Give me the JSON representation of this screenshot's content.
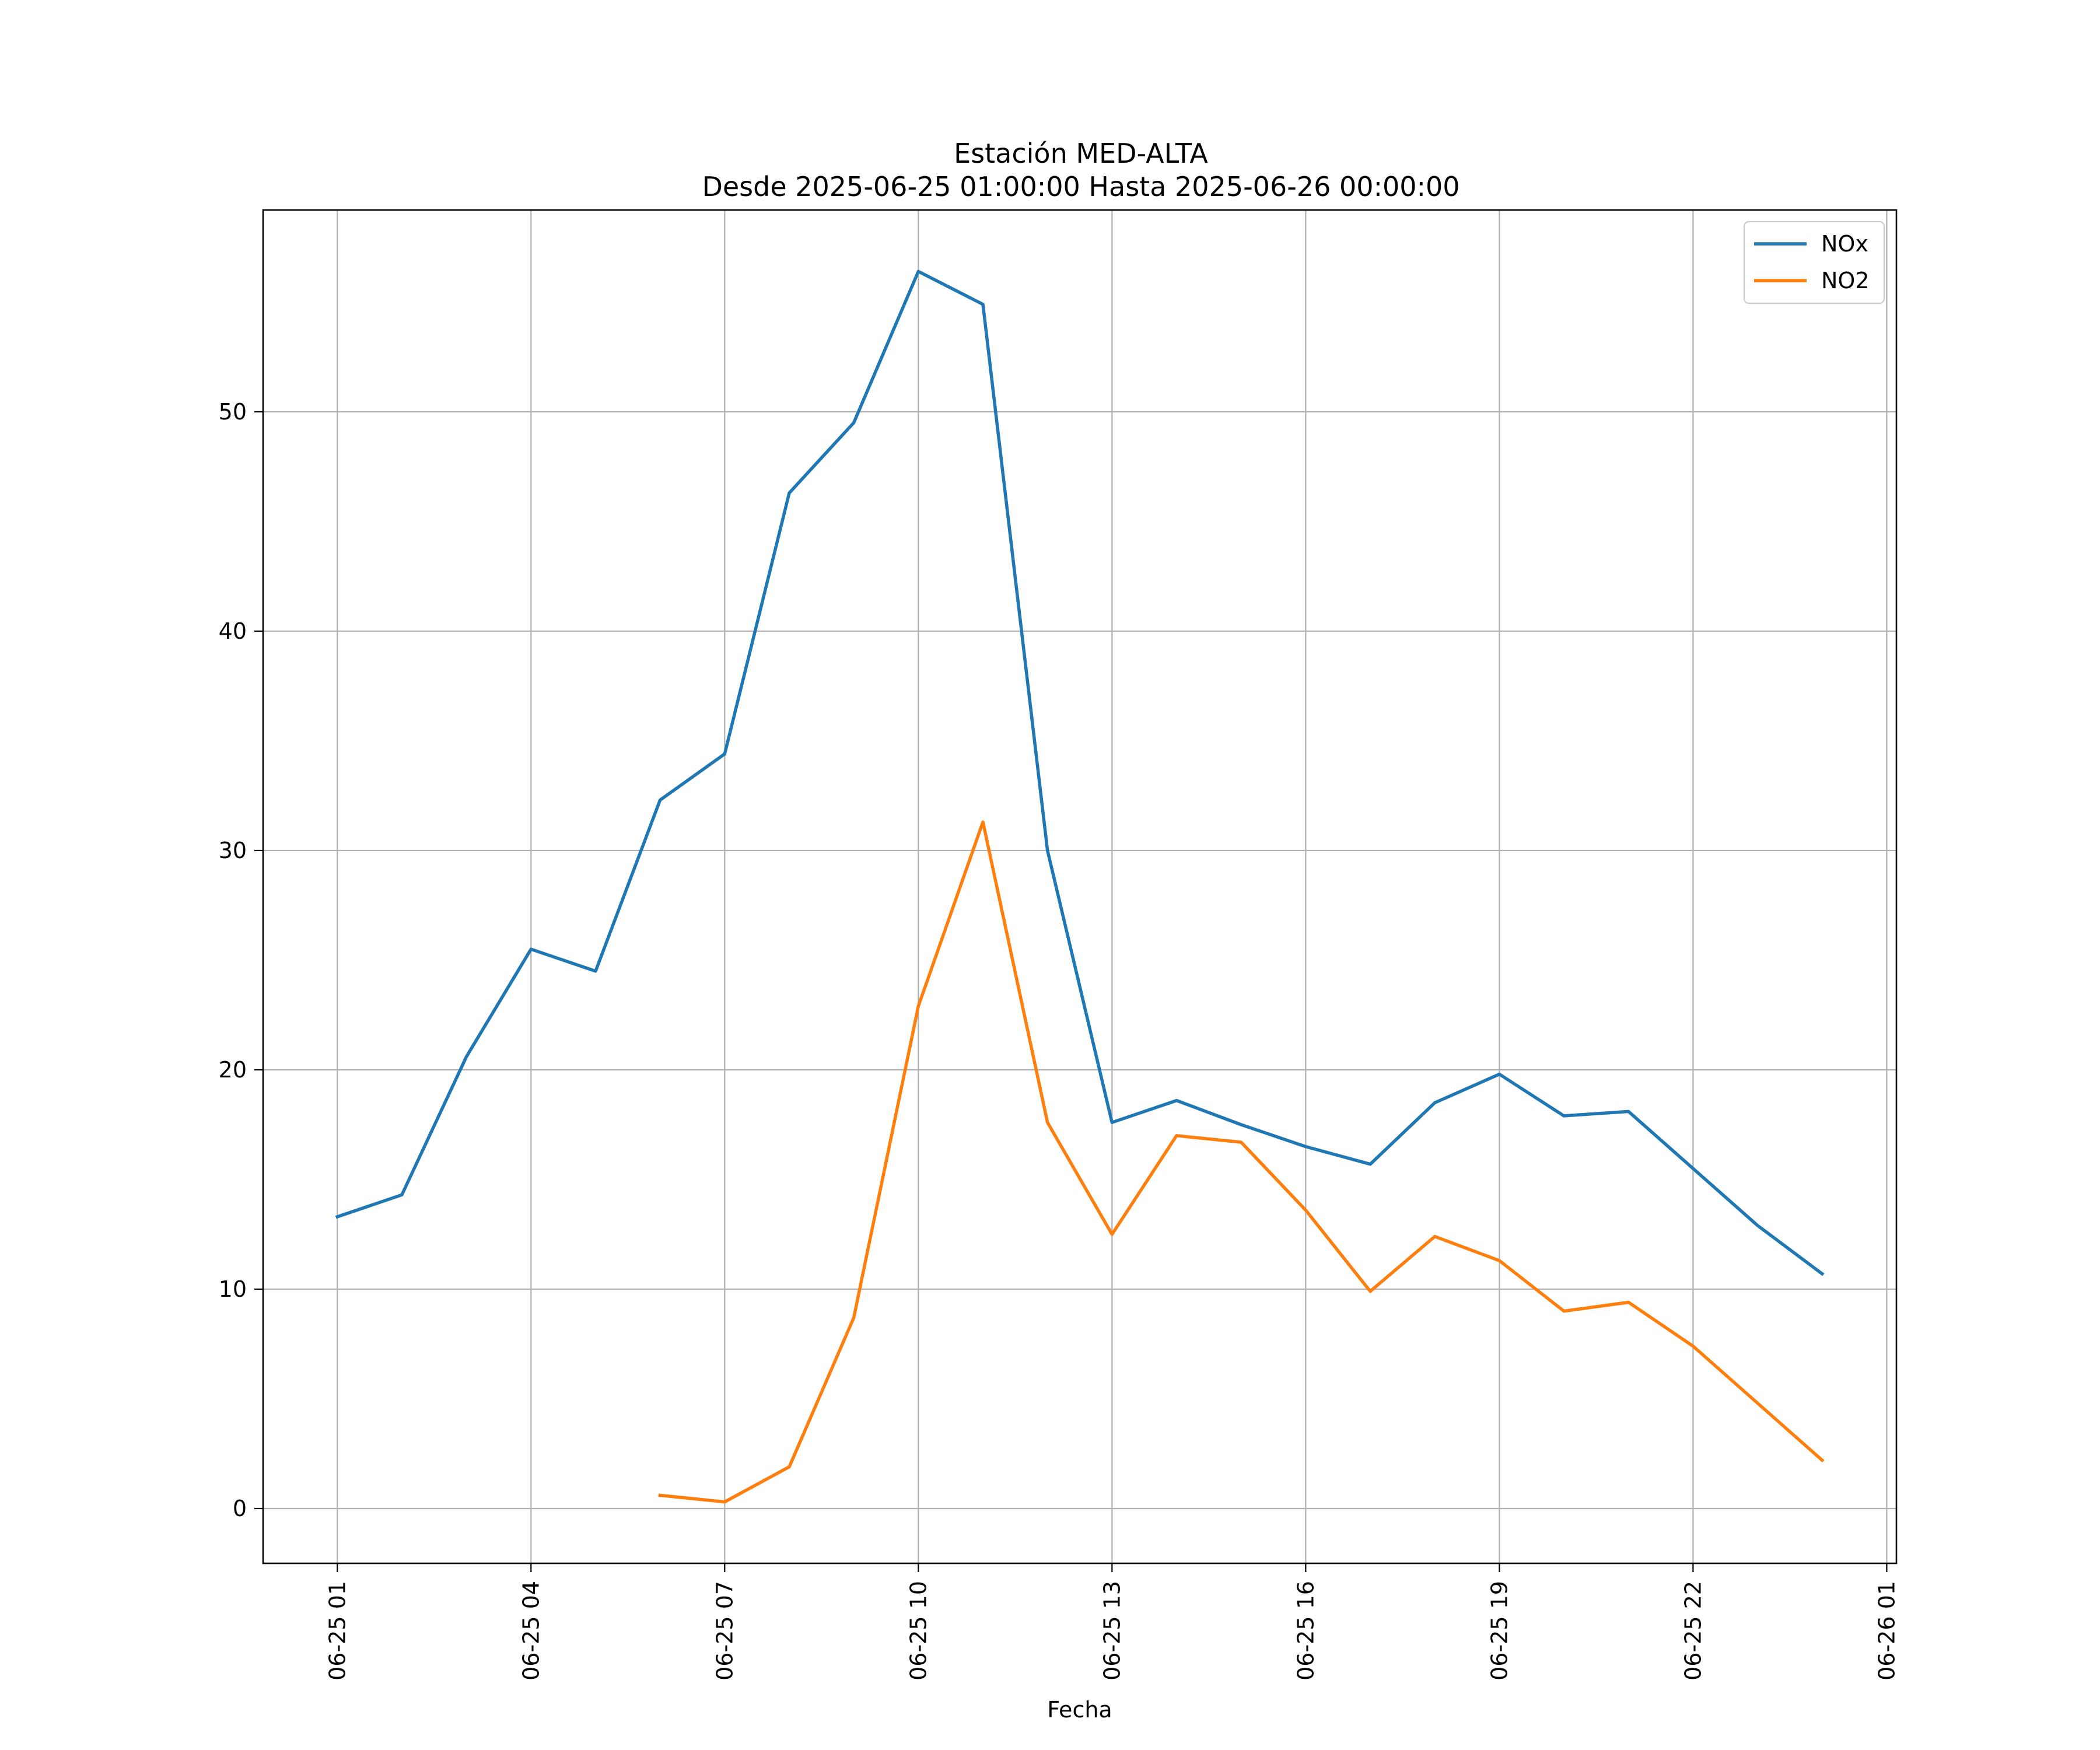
{
  "chart_data": {
    "type": "line",
    "title": "Estación MED-ALTA",
    "subtitle": "Desde 2025-06-25 01:00:00 Hasta 2025-06-26 00:00:00",
    "xlabel": "Fecha",
    "ylabel": "",
    "x": [
      "2025-06-25 01:00",
      "2025-06-25 02:00",
      "2025-06-25 03:00",
      "2025-06-25 04:00",
      "2025-06-25 05:00",
      "2025-06-25 06:00",
      "2025-06-25 07:00",
      "2025-06-25 08:00",
      "2025-06-25 09:00",
      "2025-06-25 10:00",
      "2025-06-25 11:00",
      "2025-06-25 12:00",
      "2025-06-25 13:00",
      "2025-06-25 14:00",
      "2025-06-25 15:00",
      "2025-06-25 16:00",
      "2025-06-25 17:00",
      "2025-06-25 18:00",
      "2025-06-25 19:00",
      "2025-06-25 20:00",
      "2025-06-25 21:00",
      "2025-06-25 22:00",
      "2025-06-25 23:00",
      "2025-06-26 00:00"
    ],
    "series": [
      {
        "name": "NOx",
        "color": "#1f77b4",
        "values": [
          13.3,
          14.3,
          20.6,
          25.5,
          24.5,
          32.3,
          34.4,
          46.3,
          49.5,
          56.4,
          54.9,
          30.0,
          17.6,
          18.6,
          17.5,
          16.5,
          15.7,
          18.5,
          19.8,
          17.9,
          18.1,
          15.5,
          12.9,
          10.7
        ]
      },
      {
        "name": "NO2",
        "color": "#ff7f0e",
        "values": [
          null,
          null,
          null,
          null,
          null,
          0.6,
          0.3,
          1.9,
          8.7,
          22.9,
          31.3,
          17.6,
          12.5,
          17.0,
          16.7,
          13.6,
          9.9,
          12.4,
          11.3,
          9.0,
          9.4,
          7.4,
          4.8,
          2.2
        ]
      }
    ],
    "x_ticks": [
      "06-25 01",
      "06-25 04",
      "06-25 07",
      "06-25 10",
      "06-25 13",
      "06-25 16",
      "06-25 19",
      "06-25 22",
      "06-26 01"
    ],
    "y_ticks": [
      0,
      10,
      20,
      30,
      40,
      50
    ],
    "ylim": [
      -2.5,
      59.2
    ],
    "xlim_hours": [
      -1.15,
      24.15
    ],
    "grid": true,
    "legend_position": "top-right"
  }
}
